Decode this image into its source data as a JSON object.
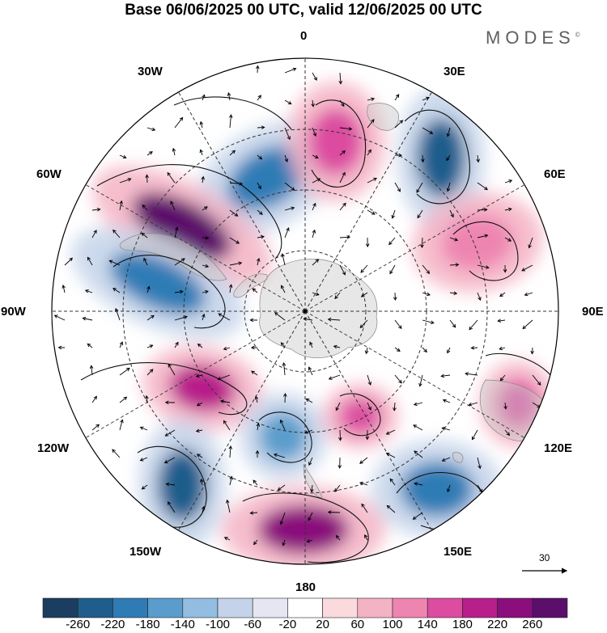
{
  "title": "Base 06/06/2025 00 UTC, valid 12/06/2025 00 UTC",
  "brand": "MODES",
  "brand_mark": "©",
  "meridian_labels": {
    "m0": "0",
    "m30e": "30E",
    "m60e": "60E",
    "m90e": "90E",
    "m120e": "120E",
    "m150e": "150E",
    "m180": "180",
    "m150w": "150W",
    "m120w": "120W",
    "m90w": "90W",
    "m60w": "60W",
    "m30w": "30W"
  },
  "reference_vector": "30",
  "colorbar": {
    "ticks": [
      "-260",
      "-220",
      "-180",
      "-140",
      "-100",
      "-60",
      "-20",
      "20",
      "60",
      "100",
      "140",
      "180",
      "220",
      "260"
    ],
    "colors": [
      "#1b3d5f",
      "#1f5d8c",
      "#2f7bb5",
      "#5a9dcc",
      "#92bde0",
      "#c4d3ea",
      "#e6e6f2",
      "#ffffff",
      "#fadadd",
      "#f4b3c4",
      "#ee85b0",
      "#dc4ca0",
      "#b81f8a",
      "#8a0f7c",
      "#5b0f6b"
    ]
  },
  "anomalies": [
    {
      "sign": "neg",
      "level": 5,
      "note": "South Atlantic low"
    },
    {
      "sign": "pos",
      "level": 7,
      "note": "Drake passage high"
    },
    {
      "sign": "neg",
      "level": 5,
      "note": "SE Pacific low"
    },
    {
      "sign": "neg",
      "level": 6,
      "note": "Indian Ocean low"
    },
    {
      "sign": "pos",
      "level": 3,
      "note": "Indian Ocean high"
    },
    {
      "sign": "pos",
      "level": 4,
      "note": "Atlantic high"
    },
    {
      "sign": "pos",
      "level": 5,
      "note": "Pacific high"
    },
    {
      "sign": "neg",
      "level": 6,
      "note": "Pacific low"
    },
    {
      "sign": "neg",
      "level": 4,
      "note": "Ross Sea low"
    },
    {
      "sign": "pos",
      "level": 4,
      "note": "Ross Sea high"
    },
    {
      "sign": "pos",
      "level": 6,
      "note": "South Pacific high"
    },
    {
      "sign": "neg",
      "level": 5,
      "note": "Tasman low"
    },
    {
      "sign": "pos",
      "level": 4,
      "note": "Australia high"
    }
  ]
}
